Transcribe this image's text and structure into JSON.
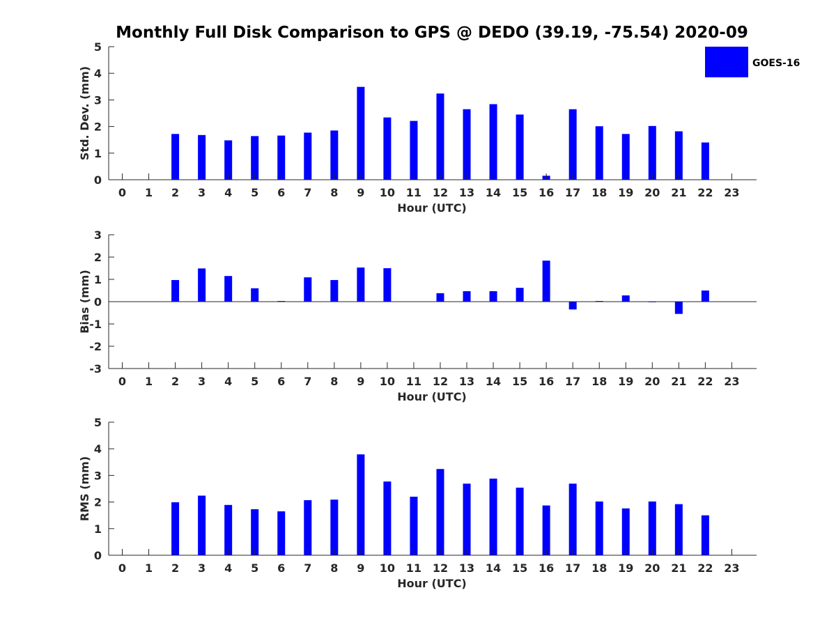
{
  "title": "Monthly Full Disk Comparison to GPS @ DEDO (39.19, -75.54) 2020-09",
  "legend": {
    "label": "GOES-16",
    "color": "#0000ff",
    "position": "top-right"
  },
  "colors": {
    "bar": "#0000ff",
    "axis": "#262626",
    "text": "#000000"
  },
  "chart_data": [
    {
      "type": "bar",
      "name": "std",
      "ylabel": "Std. Dev. (mm)",
      "xlabel": "Hour (UTC)",
      "ylim": [
        0,
        5
      ],
      "yticks": [
        0,
        1,
        2,
        3,
        4,
        5
      ],
      "x": [
        0,
        1,
        2,
        3,
        4,
        5,
        6,
        7,
        8,
        9,
        10,
        11,
        12,
        13,
        14,
        15,
        16,
        17,
        18,
        19,
        20,
        21,
        22,
        23
      ],
      "values": [
        null,
        null,
        1.72,
        1.68,
        1.48,
        1.64,
        1.66,
        1.77,
        1.85,
        3.49,
        2.34,
        2.21,
        3.24,
        2.65,
        2.84,
        2.45,
        0.15,
        2.65,
        2.01,
        1.72,
        2.02,
        1.82,
        1.4,
        null
      ],
      "series": "GOES-16",
      "grid": false
    },
    {
      "type": "bar",
      "name": "bias",
      "ylabel": "Bias (mm)",
      "xlabel": "Hour (UTC)",
      "ylim": [
        -3,
        3
      ],
      "yticks": [
        -3,
        -2,
        -1,
        0,
        1,
        2,
        3
      ],
      "x": [
        0,
        1,
        2,
        3,
        4,
        5,
        6,
        7,
        8,
        9,
        10,
        11,
        12,
        13,
        14,
        15,
        16,
        17,
        18,
        19,
        20,
        21,
        22,
        23
      ],
      "values": [
        null,
        null,
        0.97,
        1.49,
        1.15,
        0.6,
        0.03,
        1.09,
        0.97,
        1.53,
        1.5,
        0.01,
        0.38,
        0.47,
        0.47,
        0.62,
        1.84,
        -0.35,
        0.03,
        0.28,
        0.0,
        -0.55,
        0.5,
        null
      ],
      "series": "GOES-16",
      "grid": false
    },
    {
      "type": "bar",
      "name": "rms",
      "ylabel": "RMS (mm)",
      "xlabel": "Hour (UTC)",
      "ylim": [
        0,
        5
      ],
      "yticks": [
        0,
        1,
        2,
        3,
        4,
        5
      ],
      "x": [
        0,
        1,
        2,
        3,
        4,
        5,
        6,
        7,
        8,
        9,
        10,
        11,
        12,
        13,
        14,
        15,
        16,
        17,
        18,
        19,
        20,
        21,
        22,
        23
      ],
      "values": [
        null,
        null,
        1.99,
        2.24,
        1.89,
        1.73,
        1.65,
        2.07,
        2.09,
        3.79,
        2.77,
        2.2,
        3.24,
        2.69,
        2.88,
        2.54,
        1.87,
        2.69,
        2.02,
        1.76,
        2.02,
        1.92,
        1.5,
        null
      ],
      "series": "GOES-16",
      "grid": false
    }
  ]
}
